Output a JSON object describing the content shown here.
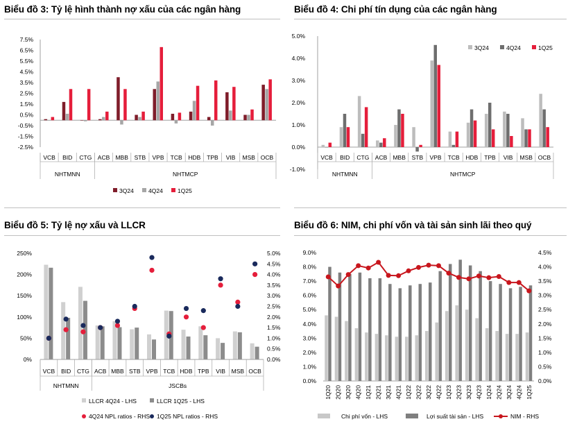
{
  "colors": {
    "dark_red": "#7f1d2a",
    "red": "#e51e3b",
    "light_gray": "#bdbdbd",
    "mid_gray": "#8c8c8c",
    "dark_gray": "#6e6e6e",
    "navy": "#1a2a5c",
    "nim_red": "#c8161d"
  },
  "chart_data": [
    {
      "id": "chart3",
      "type": "bar",
      "title": "Biểu đồ 3: Tỷ lệ hình thành nợ xấu của các ngân hàng",
      "categories": [
        "VCB",
        "BID",
        "CTG",
        "ACB",
        "MBB",
        "STB",
        "VPB",
        "TCB",
        "HDB",
        "TPB",
        "VIB",
        "MSB",
        "OCB"
      ],
      "groups": [
        {
          "label": "NHTMNN",
          "count": 3
        },
        {
          "label": "NHTMCP",
          "count": 10
        }
      ],
      "series": [
        {
          "name": "3Q24",
          "color": "#7f1d2a",
          "values": [
            0.1,
            1.7,
            0.0,
            0.1,
            4.0,
            0.5,
            2.9,
            0.6,
            0.8,
            0.3,
            2.6,
            0.5,
            3.3
          ]
        },
        {
          "name": "4Q24",
          "color": "#a6a6a6",
          "values": [
            0.0,
            0.6,
            -0.1,
            0.3,
            -0.4,
            0.3,
            3.6,
            -0.3,
            1.8,
            -0.5,
            0.9,
            0.5,
            2.9
          ]
        },
        {
          "name": "1Q25",
          "color": "#e51e3b",
          "values": [
            0.3,
            2.9,
            2.9,
            0.8,
            2.9,
            0.8,
            6.8,
            0.7,
            3.2,
            3.7,
            3.1,
            1.0,
            3.8
          ]
        }
      ],
      "yticks": [
        "7.5%",
        "6.5%",
        "5.5%",
        "4.5%",
        "3.5%",
        "2.5%",
        "1.5%",
        "0.5%",
        "-0.5%",
        "-1.5%",
        "-2.5%"
      ],
      "ylim": [
        -2.5,
        7.5
      ],
      "legend": "bottom"
    },
    {
      "id": "chart4",
      "type": "bar",
      "title": "Biểu đồ 4: Chi phí tín dụng của các ngân hàng",
      "categories": [
        "VCB",
        "BID",
        "CTG",
        "ACB",
        "MBB",
        "STB",
        "VPB",
        "TCB",
        "HDB",
        "TPB",
        "VIB",
        "MSB",
        "OCB"
      ],
      "groups": [
        {
          "label": "NHTMNN",
          "count": 3
        },
        {
          "label": "NHTMCP",
          "count": 10
        }
      ],
      "series": [
        {
          "name": "3Q24",
          "color": "#bdbdbd",
          "values": [
            0.1,
            0.9,
            2.3,
            0.3,
            1.0,
            0.9,
            3.9,
            0.7,
            1.1,
            1.5,
            1.6,
            1.3,
            2.4
          ]
        },
        {
          "name": "4Q24",
          "color": "#6e6e6e",
          "values": [
            0.0,
            1.5,
            0.6,
            0.2,
            1.7,
            -0.2,
            4.6,
            0.1,
            1.7,
            2.0,
            1.5,
            0.8,
            1.7
          ]
        },
        {
          "name": "1Q25",
          "color": "#e51e3b",
          "values": [
            0.2,
            0.9,
            1.8,
            0.4,
            1.5,
            0.1,
            3.7,
            0.7,
            1.2,
            0.8,
            0.5,
            0.8,
            0.9
          ]
        }
      ],
      "yticks": [
        "5.0%",
        "4.0%",
        "3.0%",
        "2.0%",
        "1.0%",
        "0.0%",
        "-1.0%"
      ],
      "ylim": [
        -1.0,
        5.0
      ],
      "legend": "top-right"
    },
    {
      "id": "chart5",
      "type": "bar",
      "title": "Biểu đồ 5: Tỷ lệ nợ xấu và LLCR",
      "categories": [
        "VCB",
        "BID",
        "CTG",
        "ACB",
        "MBB",
        "STB",
        "VPB",
        "TCB",
        "HDB",
        "TPB",
        "VIB",
        "MSB",
        "OCB"
      ],
      "groups": [
        {
          "label": "NHTMNN",
          "count": 3
        },
        {
          "label": "JSCBs",
          "count": 10
        }
      ],
      "series": [
        {
          "name": "LLCR 4Q24 - LHS",
          "kind": "bar",
          "axis": "left",
          "color": "#d0d0d0",
          "values": [
            223,
            135,
            171,
            80,
            90,
            71,
            59,
            115,
            70,
            78,
            50,
            66,
            38
          ]
        },
        {
          "name": "LLCR 1Q25 - LHS",
          "kind": "bar",
          "axis": "left",
          "color": "#8c8c8c",
          "values": [
            216,
            98,
            138,
            78,
            76,
            75,
            47,
            114,
            54,
            57,
            39,
            64,
            30
          ]
        },
        {
          "name": "4Q24 NPL ratios - RHS",
          "kind": "dot",
          "axis": "right",
          "color": "#e51e3b",
          "values": [
            1.0,
            1.4,
            1.3,
            1.5,
            1.6,
            2.4,
            4.2,
            1.2,
            2.0,
            1.5,
            3.5,
            2.7,
            4.0
          ]
        },
        {
          "name": "1Q25 NPL ratios - RHS",
          "kind": "dot",
          "axis": "right",
          "color": "#1a2a5c",
          "values": [
            1.0,
            1.9,
            1.6,
            1.5,
            1.8,
            2.5,
            4.8,
            1.1,
            2.4,
            2.3,
            3.8,
            2.5,
            4.5
          ]
        }
      ],
      "yticks_left": [
        "250%",
        "200%",
        "150%",
        "100%",
        "50%",
        "0%"
      ],
      "ylim_left": [
        0,
        250
      ],
      "yticks_right": [
        "5.0%",
        "4.5%",
        "4.0%",
        "3.5%",
        "3.0%",
        "2.5%",
        "2.0%",
        "1.5%",
        "1.0%",
        "0.5%",
        "0.0%"
      ],
      "ylim_right": [
        0,
        5.0
      ],
      "legend": "bottom"
    },
    {
      "id": "chart6",
      "type": "bar",
      "title": "Biểu đồ 6: NIM, chi phí vốn và tài sản sinh lãi theo quý",
      "categories": [
        "1Q20",
        "2Q20",
        "3Q20",
        "4Q20",
        "1Q21",
        "2Q21",
        "3Q21",
        "4Q21",
        "1Q22",
        "2Q22",
        "3Q22",
        "4Q22",
        "1Q23",
        "2Q23",
        "3Q23",
        "4Q23",
        "1Q24",
        "2Q24",
        "3Q24",
        "4Q24",
        "1Q25"
      ],
      "series": [
        {
          "name": "Chi phí vốn - LHS",
          "kind": "bar",
          "axis": "left",
          "color": "#c8c8c8",
          "values": [
            4.6,
            4.5,
            4.2,
            3.7,
            3.4,
            3.3,
            3.2,
            3.1,
            3.1,
            3.2,
            3.5,
            4.1,
            4.9,
            5.3,
            5.0,
            4.4,
            3.7,
            3.5,
            3.3,
            3.3,
            3.4
          ]
        },
        {
          "name": "Lợi suất tài sản - LHS",
          "kind": "bar",
          "axis": "left",
          "color": "#7f7f7f",
          "values": [
            8.0,
            7.6,
            7.5,
            7.6,
            7.2,
            7.2,
            6.8,
            6.5,
            6.7,
            6.8,
            6.9,
            7.7,
            8.2,
            8.5,
            8.1,
            7.7,
            7.0,
            6.8,
            6.5,
            6.6,
            6.7
          ]
        },
        {
          "name": "NIM - RHS",
          "kind": "line",
          "axis": "right",
          "color": "#c8161d",
          "values": [
            3.65,
            3.33,
            3.73,
            4.04,
            3.96,
            4.16,
            3.7,
            3.69,
            3.86,
            3.98,
            4.06,
            4.04,
            3.78,
            3.63,
            3.58,
            3.68,
            3.62,
            3.66,
            3.45,
            3.45,
            3.16
          ]
        }
      ],
      "yticks_left": [
        "9.0%",
        "8.0%",
        "7.0%",
        "6.0%",
        "5.0%",
        "4.0%",
        "3.0%",
        "2.0%",
        "1.0%",
        "0.0%"
      ],
      "ylim_left": [
        0,
        9.0
      ],
      "yticks_right": [
        "4.5%",
        "4.0%",
        "3.5%",
        "3.0%",
        "2.5%",
        "2.0%",
        "1.5%",
        "1.0%",
        "0.5%",
        "0.0%"
      ],
      "ylim_right": [
        0,
        4.5
      ],
      "legend": "bottom"
    }
  ]
}
